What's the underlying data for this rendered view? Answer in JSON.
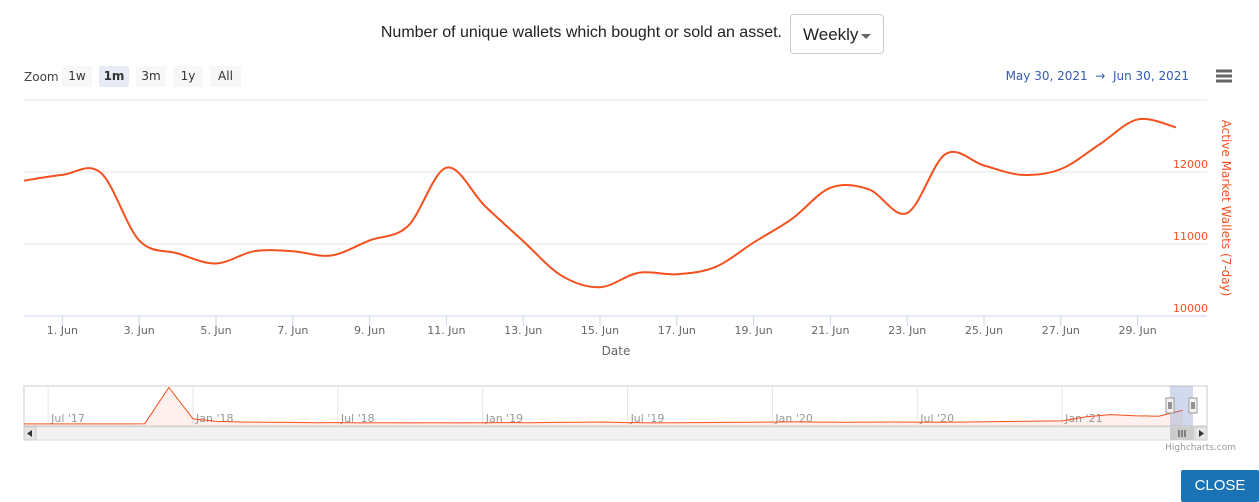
{
  "header": {
    "title": "Number of unique wallets which bought or sold an asset.",
    "dropdown": "Weekly"
  },
  "zoom": {
    "label": "Zoom",
    "buttons": [
      "1w",
      "1m",
      "3m",
      "1y",
      "All"
    ],
    "selected": 1
  },
  "range": {
    "from": "May 30, 2021",
    "arrow": "→",
    "to": "Jun 30, 2021"
  },
  "chart_data": {
    "type": "line",
    "color": "#f4511e",
    "y_label": "Active Market Wallets (7-day)",
    "x_label": "Date",
    "x": [
      "2021-05-31",
      "2021-06-01",
      "2021-06-02",
      "2021-06-03",
      "2021-06-04",
      "2021-06-05",
      "2021-06-06",
      "2021-06-07",
      "2021-06-08",
      "2021-06-09",
      "2021-06-10",
      "2021-06-11",
      "2021-06-12",
      "2021-06-13",
      "2021-06-14",
      "2021-06-15",
      "2021-06-16",
      "2021-06-17",
      "2021-06-18",
      "2021-06-19",
      "2021-06-20",
      "2021-06-21",
      "2021-06-22",
      "2021-06-23",
      "2021-06-24",
      "2021-06-25",
      "2021-06-26",
      "2021-06-27",
      "2021-06-28",
      "2021-06-29",
      "2021-06-30"
    ],
    "values": [
      11880,
      11960,
      11990,
      11050,
      10870,
      10730,
      10900,
      10900,
      10840,
      11050,
      11250,
      12060,
      11530,
      11040,
      10560,
      10400,
      10600,
      10580,
      10680,
      11020,
      11350,
      11780,
      11760,
      11430,
      12250,
      12090,
      11960,
      12040,
      12380,
      12730,
      12620
    ],
    "xlim": [
      "2021-05-31",
      "2021-06-30"
    ],
    "xticks": [
      {
        "value": "2021-06-01",
        "label": "1. Jun"
      },
      {
        "value": "2021-06-03",
        "label": "3. Jun"
      },
      {
        "value": "2021-06-05",
        "label": "5. Jun"
      },
      {
        "value": "2021-06-07",
        "label": "7. Jun"
      },
      {
        "value": "2021-06-09",
        "label": "9. Jun"
      },
      {
        "value": "2021-06-11",
        "label": "11. Jun"
      },
      {
        "value": "2021-06-13",
        "label": "13. Jun"
      },
      {
        "value": "2021-06-15",
        "label": "15. Jun"
      },
      {
        "value": "2021-06-17",
        "label": "17. Jun"
      },
      {
        "value": "2021-06-19",
        "label": "19. Jun"
      },
      {
        "value": "2021-06-21",
        "label": "21. Jun"
      },
      {
        "value": "2021-06-23",
        "label": "23. Jun"
      },
      {
        "value": "2021-06-25",
        "label": "25. Jun"
      },
      {
        "value": "2021-06-27",
        "label": "27. Jun"
      },
      {
        "value": "2021-06-29",
        "label": "29. Jun"
      }
    ],
    "ylim": [
      10000,
      13000
    ],
    "yticks": [
      10000,
      11000,
      12000
    ],
    "grid": true
  },
  "navigator": {
    "type": "area",
    "color": "#f4511e",
    "x": [
      "2017-06",
      "2017-07",
      "2017-08",
      "2017-09",
      "2017-10",
      "2017-11",
      "2017-12",
      "2018-01",
      "2018-02",
      "2018-03",
      "2018-04",
      "2018-05",
      "2018-06",
      "2018-07",
      "2018-08",
      "2018-09",
      "2018-10",
      "2018-11",
      "2018-12",
      "2019-01",
      "2019-02",
      "2019-03",
      "2019-04",
      "2019-05",
      "2019-06",
      "2019-07",
      "2019-08",
      "2019-09",
      "2019-10",
      "2019-11",
      "2019-12",
      "2020-01",
      "2020-02",
      "2020-03",
      "2020-04",
      "2020-05",
      "2020-06",
      "2020-07",
      "2020-08",
      "2020-09",
      "2020-10",
      "2020-11",
      "2020-12",
      "2021-01",
      "2021-02",
      "2021-03",
      "2021-04",
      "2021-05",
      "2021-06"
    ],
    "values": [
      1500,
      1500,
      1500,
      1500,
      1500,
      1600,
      27000,
      5000,
      3200,
      2800,
      2600,
      2500,
      2300,
      2400,
      2200,
      2300,
      2200,
      2300,
      2200,
      2300,
      2400,
      2300,
      2500,
      2600,
      2800,
      2400,
      2200,
      2300,
      2400,
      2500,
      2600,
      2800,
      2900,
      2700,
      2600,
      2700,
      2800,
      2700,
      2600,
      2800,
      3000,
      3200,
      3400,
      3600,
      6500,
      8000,
      7200,
      6800,
      11000
    ],
    "xlim": [
      "2017-06",
      "2021-07"
    ],
    "ylim": [
      0,
      28000
    ],
    "xticks": [
      {
        "value": "2017-07",
        "label": "Jul '17"
      },
      {
        "value": "2018-01",
        "label": "Jan '18"
      },
      {
        "value": "2018-07",
        "label": "Jul '18"
      },
      {
        "value": "2019-01",
        "label": "Jan '19"
      },
      {
        "value": "2019-07",
        "label": "Jul '19"
      },
      {
        "value": "2020-01",
        "label": "Jan '20"
      },
      {
        "value": "2020-07",
        "label": "Jul '20"
      },
      {
        "value": "2021-01",
        "label": "Jan '21"
      }
    ]
  },
  "credits": "Highcharts.com",
  "close_button": "CLOSE"
}
